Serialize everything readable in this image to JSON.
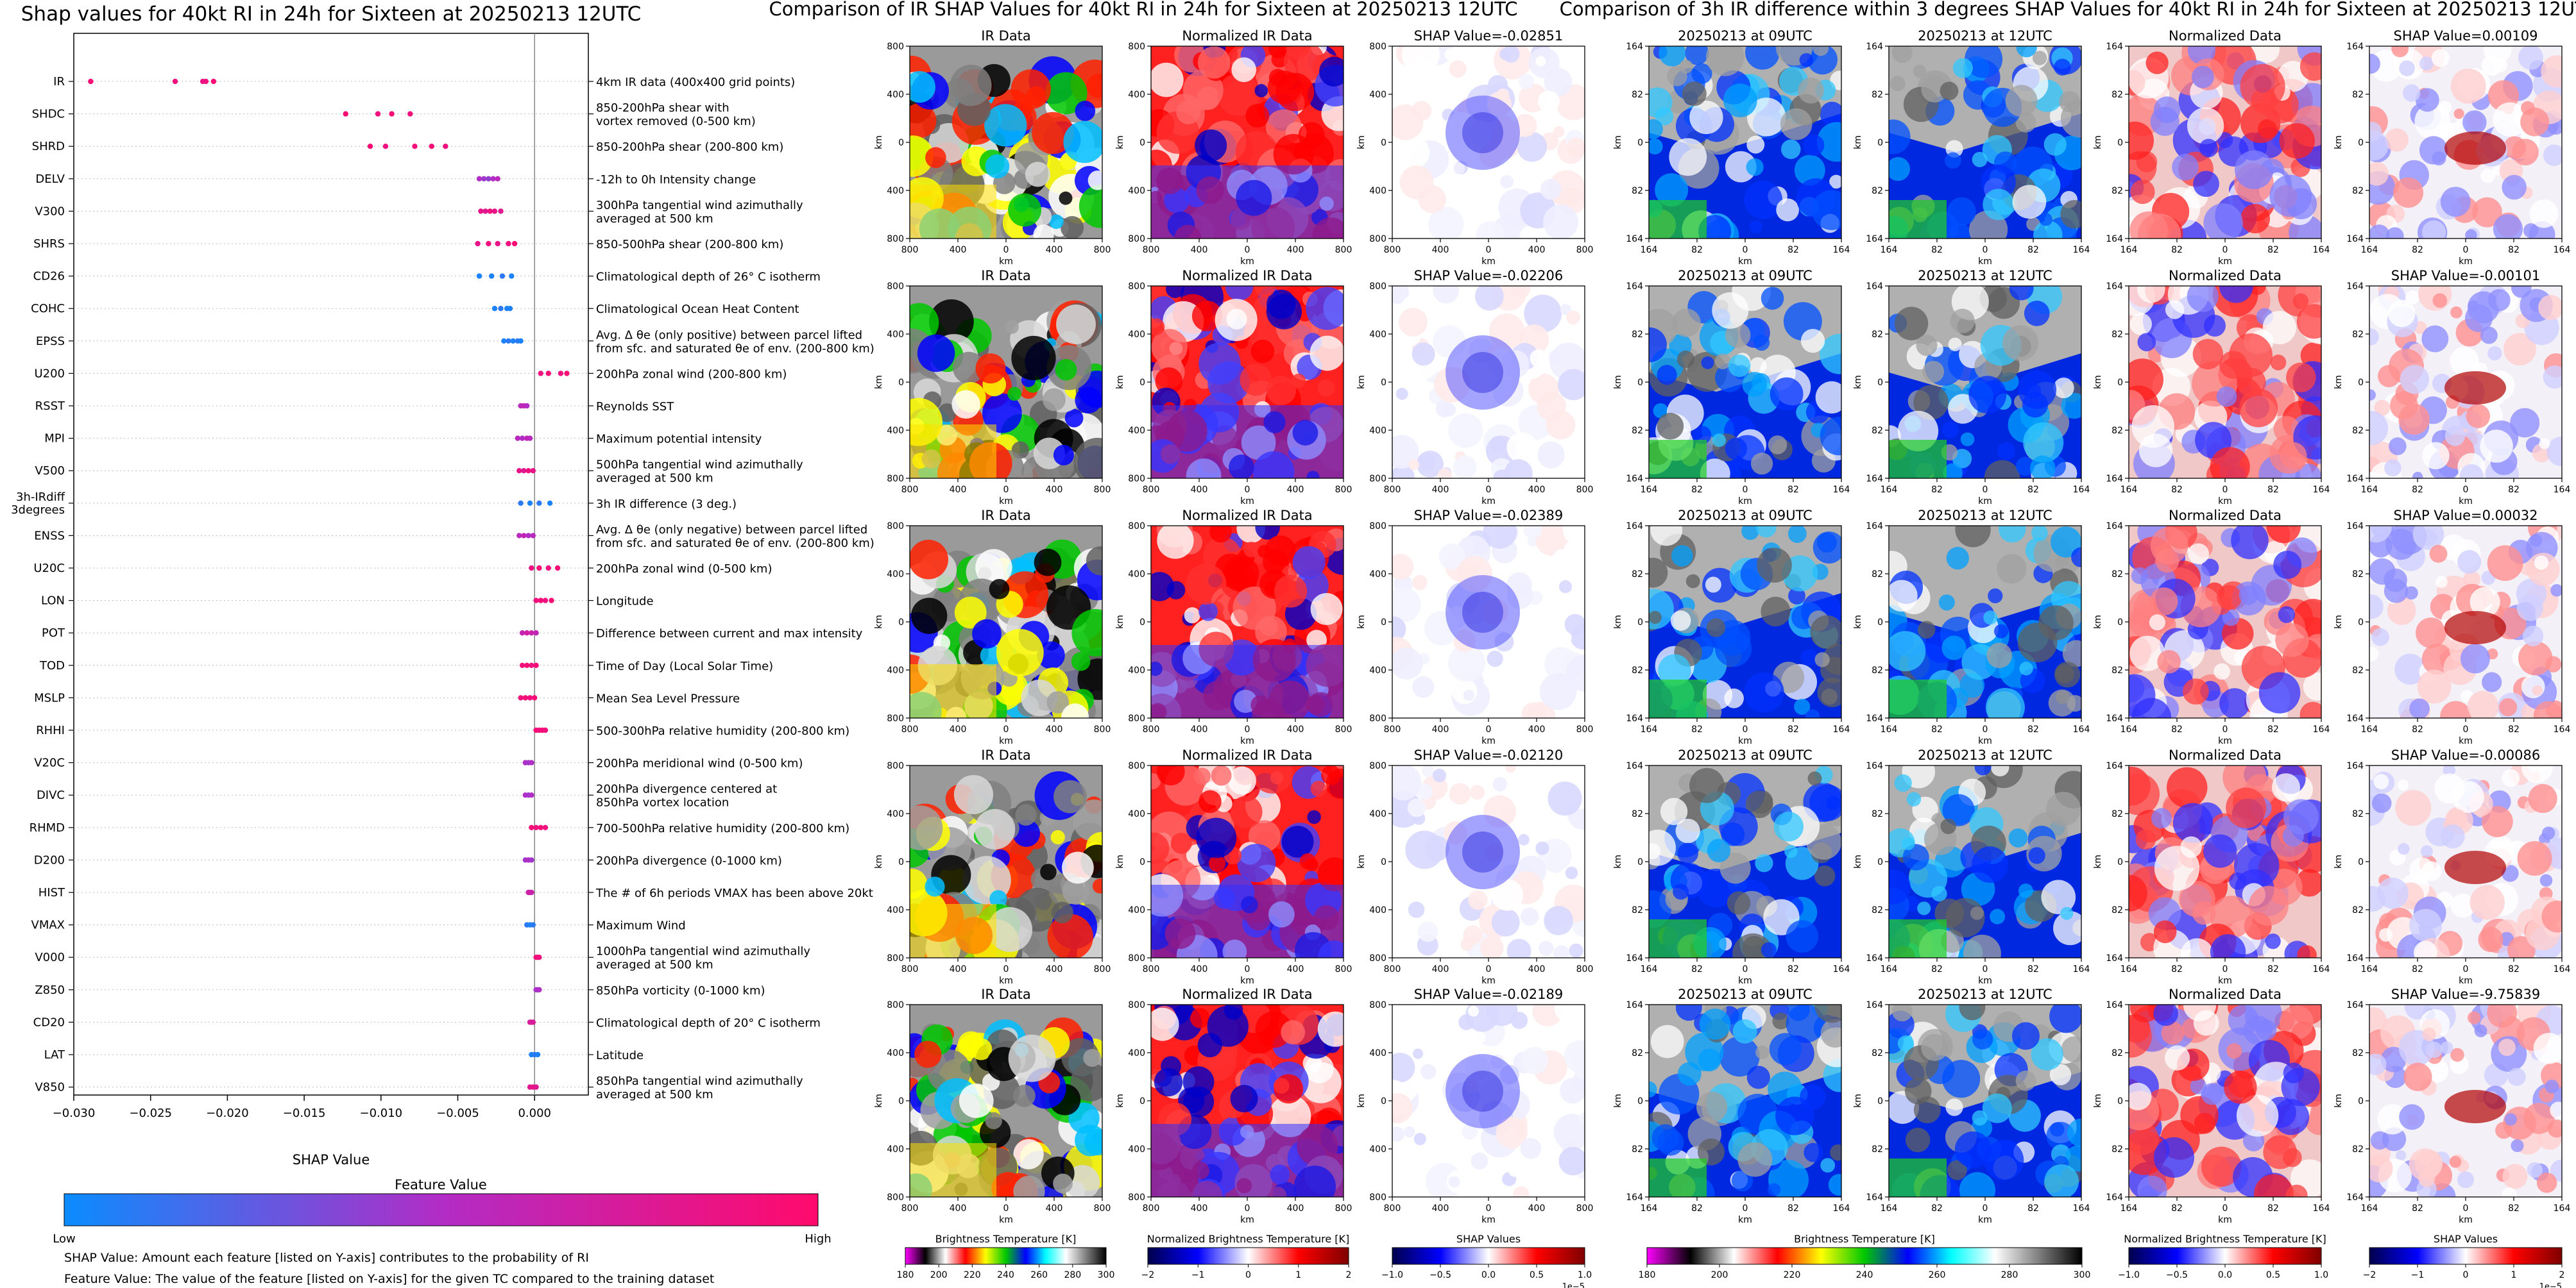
{
  "chart_data": [
    {
      "type": "scatter",
      "title": "Shap values for 40kt RI in 24h for Sixteen at 20250213 12UTC",
      "xlabel": "SHAP Value",
      "xlim": [
        -0.03,
        0.0035
      ],
      "xticks": [
        -0.03,
        -0.025,
        -0.02,
        -0.015,
        -0.01,
        -0.005,
        0.0
      ],
      "xtick_labels": [
        "−0.030",
        "−0.025",
        "−0.020",
        "−0.015",
        "−0.010",
        "−0.005",
        "0.000"
      ],
      "colorbar": {
        "title": "Feature Value",
        "low": "Low",
        "high": "High",
        "colors": [
          "#0b8cff",
          "#b22cc6",
          "#ff0a6c"
        ]
      },
      "notes": [
        "SHAP Value: Amount each feature [listed on Y-axis] contributes to the probability of RI",
        "Feature Value: The value of the feature [listed on Y-axis] for the given TC compared to the training dataset"
      ],
      "features": [
        {
          "name": "IR",
          "desc": [
            "4km IR data (400x400 grid points)"
          ],
          "values": [
            -0.0289,
            -0.0234,
            -0.0216,
            -0.0214,
            -0.0209
          ],
          "fv": [
            0.95,
            0.9,
            0.85,
            0.9,
            0.95
          ]
        },
        {
          "name": "SHDC",
          "desc": [
            "850-200hPa shear with",
            "vortex removed (0-500 km)"
          ],
          "values": [
            -0.0123,
            -0.0102,
            -0.0093,
            -0.0081
          ],
          "fv": [
            0.95,
            0.9,
            0.95,
            0.9
          ]
        },
        {
          "name": "SHRD",
          "desc": [
            "850-200hPa shear (200-800 km)"
          ],
          "values": [
            -0.0107,
            -0.0097,
            -0.0078,
            -0.0067,
            -0.0058
          ],
          "fv": [
            0.95,
            0.9,
            0.9,
            0.95,
            0.9
          ]
        },
        {
          "name": "DELV",
          "desc": [
            "-12h to 0h Intensity change"
          ],
          "values": [
            -0.0036,
            -0.0033,
            -0.003,
            -0.0027,
            -0.0024
          ],
          "fv": [
            0.5,
            0.45,
            0.4,
            0.5,
            0.55
          ]
        },
        {
          "name": "V300",
          "desc": [
            "300hPa tangential wind azimuthally",
            "averaged at 500 km"
          ],
          "values": [
            -0.0035,
            -0.0032,
            -0.0029,
            -0.0026,
            -0.0022
          ],
          "fv": [
            0.85,
            0.8,
            0.9,
            0.85,
            0.8
          ]
        },
        {
          "name": "SHRS",
          "desc": [
            "850-500hPa shear (200-800 km)"
          ],
          "values": [
            -0.0037,
            -0.003,
            -0.0024,
            -0.0017,
            -0.0013
          ],
          "fv": [
            0.85,
            0.9,
            0.85,
            0.9,
            0.95
          ]
        },
        {
          "name": "CD26",
          "desc": [
            "Climatological depth of 26° C isotherm"
          ],
          "values": [
            -0.0036,
            -0.0028,
            -0.0021,
            -0.0015
          ],
          "fv": [
            0.05,
            0.05,
            0.1,
            0.05
          ]
        },
        {
          "name": "COHC",
          "desc": [
            "Climatological Ocean Heat Content"
          ],
          "values": [
            -0.0026,
            -0.0022,
            -0.0018,
            -0.0016
          ],
          "fv": [
            0.05,
            0.1,
            0.05,
            0.05
          ]
        },
        {
          "name": "EPSS",
          "desc": [
            "Avg. Δ θe (only positive) between parcel lifted",
            "from sfc. and saturated θe of env. (200-800 km)"
          ],
          "values": [
            -0.002,
            -0.0017,
            -0.0014,
            -0.0011,
            -0.0009
          ],
          "fv": [
            0.05,
            0.1,
            0.05,
            0.1,
            0.05
          ]
        },
        {
          "name": "U200",
          "desc": [
            "200hPa zonal wind (200-800 km)"
          ],
          "values": [
            0.0004,
            0.0009,
            0.0017,
            0.0021
          ],
          "fv": [
            0.9,
            0.95,
            0.9,
            0.95
          ]
        },
        {
          "name": "RSST",
          "desc": [
            "Reynolds SST"
          ],
          "values": [
            -0.0009,
            -0.0007,
            -0.0005
          ],
          "fv": [
            0.55,
            0.6,
            0.5
          ]
        },
        {
          "name": "MPI",
          "desc": [
            "Maximum potential intensity"
          ],
          "values": [
            -0.0011,
            -0.0008,
            -0.0005,
            -0.0003
          ],
          "fv": [
            0.55,
            0.5,
            0.6,
            0.55
          ]
        },
        {
          "name": "V500",
          "desc": [
            "500hPa tangential wind azimuthally",
            "averaged at 500 km"
          ],
          "values": [
            -0.001,
            -0.0007,
            -0.0004,
            -0.0001
          ],
          "fv": [
            0.85,
            0.8,
            0.9,
            0.85
          ]
        },
        {
          "name": "3h-IRdiff\n3degrees",
          "desc": [
            "3h IR difference (3 deg.)"
          ],
          "values": [
            -0.0009,
            -0.0003,
            0.0003,
            0.001
          ],
          "fv": [
            0.1,
            0.05,
            0.1,
            0.05
          ]
        },
        {
          "name": "ENSS",
          "desc": [
            "Avg. Δ θe (only negative) between parcel lifted",
            "from sfc. and saturated θe of env. (200-800 km)"
          ],
          "values": [
            -0.001,
            -0.0007,
            -0.0004,
            -0.0001
          ],
          "fv": [
            0.55,
            0.6,
            0.5,
            0.55
          ]
        },
        {
          "name": "U20C",
          "desc": [
            "200hPa zonal wind (0-500 km)"
          ],
          "values": [
            -0.0002,
            0.0003,
            0.0009,
            0.0015
          ],
          "fv": [
            0.9,
            0.95,
            0.9,
            0.95
          ]
        },
        {
          "name": "LON",
          "desc": [
            "Longitude"
          ],
          "values": [
            0.0001,
            0.0004,
            0.0007,
            0.0011
          ],
          "fv": [
            0.9,
            0.95,
            0.9,
            0.95
          ]
        },
        {
          "name": "POT",
          "desc": [
            "Difference between current and max intensity"
          ],
          "values": [
            -0.0008,
            -0.0005,
            -0.0002,
            0.0001
          ],
          "fv": [
            0.6,
            0.7,
            0.65,
            0.6
          ]
        },
        {
          "name": "TOD",
          "desc": [
            "Time of Day (Local Solar Time)"
          ],
          "values": [
            -0.0008,
            -0.0005,
            -0.0002,
            0.0001
          ],
          "fv": [
            0.9,
            0.95,
            0.9,
            0.95
          ]
        },
        {
          "name": "MSLP",
          "desc": [
            "Mean Sea Level Pressure"
          ],
          "values": [
            -0.0009,
            -0.0006,
            -0.0003,
            0.0
          ],
          "fv": [
            0.9,
            0.95,
            0.9,
            0.95
          ]
        },
        {
          "name": "RHHI",
          "desc": [
            "500-300hPa relative humidity (200-800 km)"
          ],
          "values": [
            0.0001,
            0.0003,
            0.0005,
            0.0007
          ],
          "fv": [
            0.95,
            0.9,
            0.95,
            0.9
          ]
        },
        {
          "name": "V20C",
          "desc": [
            "200hPa meridional wind (0-500 km)"
          ],
          "values": [
            -0.0006,
            -0.0004,
            -0.0002
          ],
          "fv": [
            0.5,
            0.45,
            0.5
          ]
        },
        {
          "name": "DIVC",
          "desc": [
            "200hPa divergence centered at",
            "850hPa vortex location"
          ],
          "values": [
            -0.0006,
            -0.0004,
            -0.0002
          ],
          "fv": [
            0.5,
            0.45,
            0.5
          ]
        },
        {
          "name": "RHMD",
          "desc": [
            "700-500hPa relative humidity (200-800 km)"
          ],
          "values": [
            -0.0002,
            0.0001,
            0.0004,
            0.0007
          ],
          "fv": [
            0.95,
            0.9,
            0.95,
            0.9
          ]
        },
        {
          "name": "D200",
          "desc": [
            "200hPa divergence (0-1000 km)"
          ],
          "values": [
            -0.0006,
            -0.0004,
            -0.0002
          ],
          "fv": [
            0.45,
            0.5,
            0.45
          ]
        },
        {
          "name": "HIST",
          "desc": [
            "The # of 6h periods VMAX has been above 20kt"
          ],
          "values": [
            -0.0004,
            -0.0003,
            -0.0002
          ],
          "fv": [
            0.65,
            0.7,
            0.65
          ]
        },
        {
          "name": "VMAX",
          "desc": [
            "Maximum Wind"
          ],
          "values": [
            -0.0005,
            -0.0003,
            -0.0001
          ],
          "fv": [
            0.1,
            0.05,
            0.1
          ]
        },
        {
          "name": "V000",
          "desc": [
            "1000hPa tangential wind azimuthally",
            "averaged at 500 km"
          ],
          "values": [
            0.0001,
            0.0002,
            0.0003
          ],
          "fv": [
            0.9,
            0.95,
            0.9
          ]
        },
        {
          "name": "Z850",
          "desc": [
            "850hPa vorticity (0-1000 km)"
          ],
          "values": [
            0.0001,
            0.0002,
            0.0003
          ],
          "fv": [
            0.5,
            0.45,
            0.5
          ]
        },
        {
          "name": "CD20",
          "desc": [
            "Climatological depth of 20° C isotherm"
          ],
          "values": [
            -0.0003,
            -0.0002,
            -0.0001
          ],
          "fv": [
            0.75,
            0.7,
            0.75
          ]
        },
        {
          "name": "LAT",
          "desc": [
            "Latitude"
          ],
          "values": [
            -0.0002,
            0.0,
            0.0002
          ],
          "fv": [
            0.05,
            0.1,
            0.05
          ]
        },
        {
          "name": "V850",
          "desc": [
            "850hPa tangential wind azimuthally",
            "averaged at 500 km"
          ],
          "values": [
            -0.0003,
            -0.0001,
            0.0001
          ],
          "fv": [
            0.8,
            0.85,
            0.8
          ]
        }
      ]
    },
    {
      "type": "heatmap",
      "title": "Comparison of IR SHAP Values for 40kt RI in 24h for Sixteen at 20250213 12UTC",
      "columns": [
        "IR Data",
        "Normalized IR Data",
        "SHAP"
      ],
      "shap_prefix": "SHAP Value=",
      "shap_values": [
        "-0.02851",
        "-0.02206",
        "-0.02389",
        "-0.02120",
        "-0.02189"
      ],
      "axis_ticks": [
        "800",
        "400",
        "0",
        "400",
        "800"
      ],
      "axis_label": "km",
      "colorbars": [
        {
          "label": "Brightness Temperature [K]",
          "ticks": [
            "180",
            "200",
            "220",
            "240",
            "260",
            "280",
            "300"
          ],
          "colors": [
            "#ff00ff",
            "#000000",
            "#ffffff",
            "#ff0000",
            "#ffff00",
            "#00c800",
            "#0000ff",
            "#00ffff",
            "#ffffff",
            "#808080",
            "#000000"
          ]
        },
        {
          "label": "Normalized Brightness Temperature [K]",
          "ticks": [
            "−2",
            "−1",
            "0",
            "1",
            "2"
          ],
          "colors": [
            "#00004c",
            "#0000ff",
            "#ffffff",
            "#ff0000",
            "#7f0000"
          ]
        },
        {
          "label": "SHAP Values",
          "ticks": [
            "−1.0",
            "−0.5",
            "0.0",
            "0.5",
            "1.0"
          ],
          "exponent": "1e−5",
          "colors": [
            "#00004c",
            "#0000ff",
            "#ffffff",
            "#ff0000",
            "#7f0000"
          ]
        }
      ]
    },
    {
      "type": "heatmap",
      "title": "Comparison of 3h IR difference within 3 degrees SHAP Values for 40kt RI in 24h for Sixteen at 20250213 12UTC",
      "columns": [
        "20250213 at 09UTC",
        "20250213 at 12UTC",
        "Normalized Data",
        "SHAP"
      ],
      "shap_prefix": "SHAP Value=",
      "shap_values": [
        "0.00109",
        "-0.00101",
        "0.00032",
        "-0.00086",
        "-9.75839"
      ],
      "axis_ticks": [
        "164",
        "82",
        "0",
        "82",
        "164"
      ],
      "axis_label": "km",
      "colorbars": [
        {
          "label": "Brightness Temperature [K]",
          "ticks": [
            "180",
            "200",
            "220",
            "240",
            "260",
            "280",
            "300"
          ],
          "colors": [
            "#ff00ff",
            "#000000",
            "#ffffff",
            "#ff0000",
            "#ffff00",
            "#00c800",
            "#0000ff",
            "#00ffff",
            "#ffffff",
            "#808080",
            "#000000"
          ]
        },
        {
          "label": "Normalized Brightness Temperature [K]",
          "ticks": [
            "−1.0",
            "−0.5",
            "0.0",
            "0.5",
            "1.0"
          ],
          "colors": [
            "#00004c",
            "#0000ff",
            "#ffffff",
            "#ff0000",
            "#7f0000"
          ]
        },
        {
          "label": "SHAP Values",
          "ticks": [
            "−2",
            "−1",
            "0",
            "1",
            "2"
          ],
          "exponent": "1e−5",
          "colors": [
            "#00004c",
            "#0000ff",
            "#ffffff",
            "#ff0000",
            "#7f0000"
          ]
        }
      ]
    }
  ]
}
